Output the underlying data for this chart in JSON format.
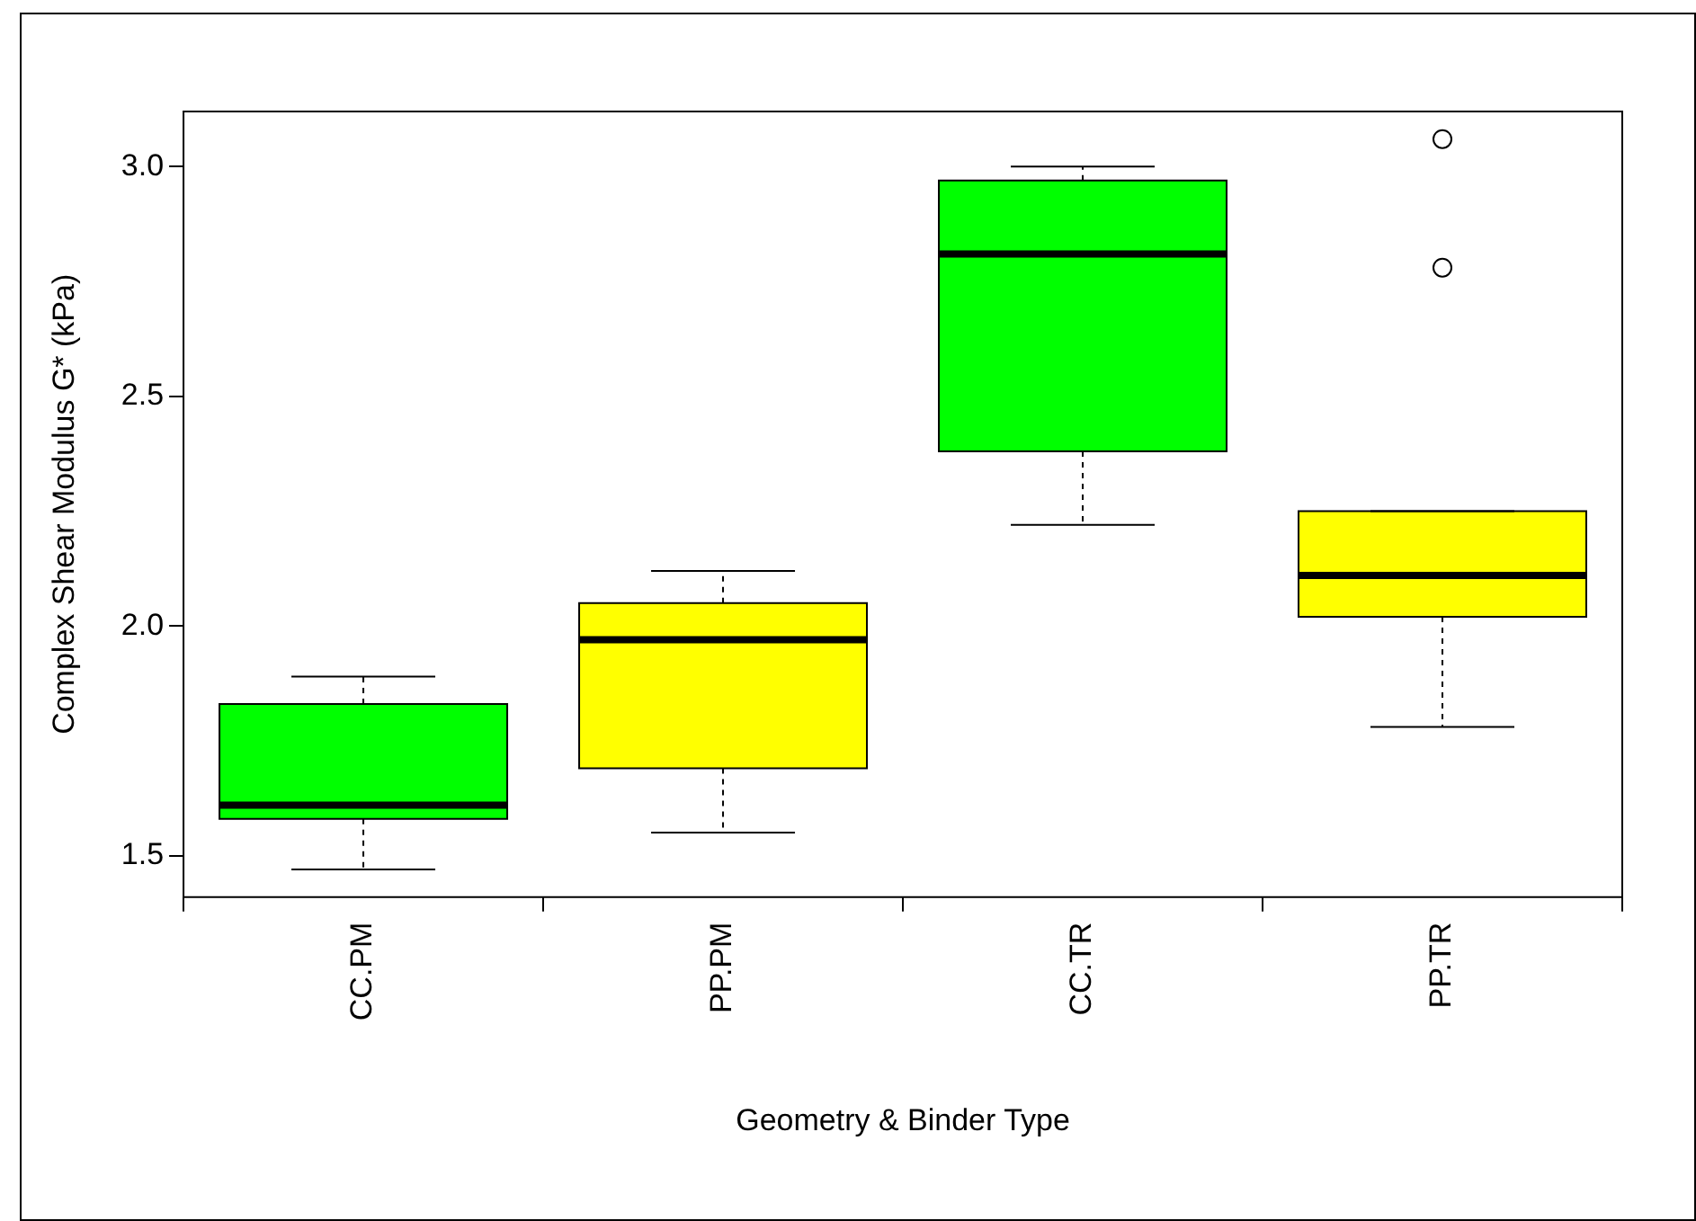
{
  "chart_data": {
    "type": "box",
    "xlabel": "Geometry & Binder Type",
    "ylabel": "Complex Shear Modulus G* (kPa)",
    "categories": [
      "CC.PM",
      "PP.PM",
      "CC.TR",
      "PP.TR"
    ],
    "colors": [
      "#00ff00",
      "#ffff00",
      "#00ff00",
      "#ffff00"
    ],
    "boxes": [
      {
        "low": 1.47,
        "q1": 1.58,
        "median": 1.61,
        "q3": 1.83,
        "high": 1.89
      },
      {
        "low": 1.55,
        "q1": 1.69,
        "median": 1.97,
        "q3": 2.05,
        "high": 2.12
      },
      {
        "low": 2.22,
        "q1": 2.38,
        "median": 2.81,
        "q3": 2.97,
        "high": 3.0
      },
      {
        "low": 1.78,
        "q1": 2.02,
        "median": 2.11,
        "q3": 2.25,
        "high": 2.25,
        "outliers": [
          2.78,
          3.06
        ]
      }
    ],
    "ylim": [
      1.41,
      3.12
    ],
    "yticks": [
      {
        "value": 1.5,
        "label": "1.5"
      },
      {
        "value": 2,
        "label": "2.0"
      },
      {
        "value": 2.5,
        "label": "2.5"
      },
      {
        "value": 3,
        "label": "3.0"
      }
    ],
    "grid": false,
    "legend": false
  }
}
